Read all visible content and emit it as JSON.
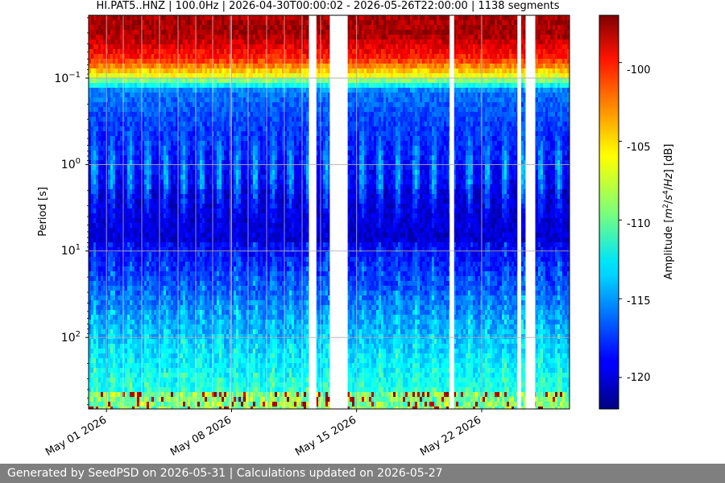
{
  "chart_data": {
    "type": "heatmap",
    "title": "HI.PAT5..HNZ | 100.0Hz | 2026-04-30T00:00:02 - 2026-05-26T22:00:00 | 1138 segments",
    "ylabel": "Period [s]",
    "y_scale": "log",
    "y_inverted": true,
    "ylim": [
      0.02,
      70
    ],
    "y_tick_labels": [
      "10^-1",
      "10^0",
      "10^1",
      "10^2"
    ],
    "x_range": [
      "2026-04-30T00:00:02",
      "2026-05-26T22:00:00"
    ],
    "x_tick_labels": [
      "May 01 2026",
      "May 08 2026",
      "May 15 2026",
      "May 22 2026"
    ],
    "data_gaps": [
      [
        "2026-05-12T08:00",
        "2026-05-12T18:00"
      ],
      [
        "2026-05-13T12:00",
        "2026-05-14T12:00"
      ],
      [
        "2026-05-20T05:00",
        "2026-05-20T11:00"
      ],
      [
        "2026-05-24T00:00",
        "2026-05-24T05:00"
      ],
      [
        "2026-05-24T11:00",
        "2026-05-25T00:00"
      ]
    ],
    "colorbar": {
      "label": "Amplitude [m^2/s^4/Hz] [dB]",
      "colormap": "jet",
      "range": [
        -122,
        -97
      ],
      "tick_labels": [
        "-100",
        "-105",
        "-110",
        "-115",
        "-120"
      ]
    },
    "grid": true
  },
  "footer": {
    "text": "Generated by SeedPSD on 2026-05-31 | Calculations updated on 2026-05-27"
  }
}
